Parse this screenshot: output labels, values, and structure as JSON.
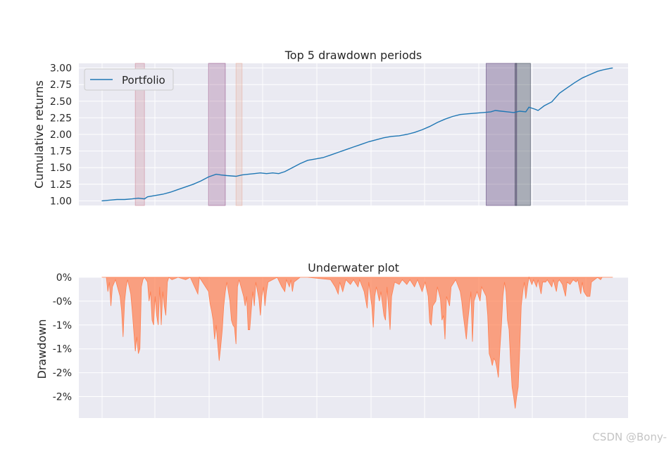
{
  "chart_data": [
    {
      "type": "line",
      "title": "Top 5 drawdown periods",
      "xlabel": "",
      "ylabel": "Cumulative returns",
      "ylim": [
        0.93,
        3.07
      ],
      "xlim": [
        -15,
        345
      ],
      "yticks": [
        1.0,
        1.25,
        1.5,
        1.75,
        2.0,
        2.25,
        2.5,
        2.75,
        3.0
      ],
      "ytick_labels": [
        "1.00",
        "1.25",
        "1.50",
        "1.75",
        "2.00",
        "2.25",
        "2.50",
        "2.75",
        "3.00"
      ],
      "grid": true,
      "legend": {
        "placement": "top-left",
        "entries": [
          "Portfolio"
        ]
      },
      "series": [
        {
          "name": "Portfolio",
          "color": "#1f77b4",
          "points": [
            [
              0,
              1.0
            ],
            [
              5,
              1.01
            ],
            [
              10,
              1.02
            ],
            [
              15,
              1.02
            ],
            [
              20,
              1.03
            ],
            [
              24,
              1.04
            ],
            [
              28,
              1.03
            ],
            [
              30,
              1.06
            ],
            [
              35,
              1.08
            ],
            [
              40,
              1.1
            ],
            [
              45,
              1.13
            ],
            [
              50,
              1.17
            ],
            [
              55,
              1.21
            ],
            [
              60,
              1.25
            ],
            [
              65,
              1.3
            ],
            [
              70,
              1.36
            ],
            [
              75,
              1.4
            ],
            [
              78,
              1.39
            ],
            [
              82,
              1.38
            ],
            [
              88,
              1.37
            ],
            [
              92,
              1.39
            ],
            [
              96,
              1.4
            ],
            [
              100,
              1.41
            ],
            [
              104,
              1.42
            ],
            [
              108,
              1.41
            ],
            [
              112,
              1.42
            ],
            [
              116,
              1.41
            ],
            [
              120,
              1.44
            ],
            [
              125,
              1.5
            ],
            [
              130,
              1.56
            ],
            [
              135,
              1.61
            ],
            [
              140,
              1.63
            ],
            [
              145,
              1.65
            ],
            [
              150,
              1.69
            ],
            [
              155,
              1.73
            ],
            [
              160,
              1.77
            ],
            [
              165,
              1.81
            ],
            [
              170,
              1.85
            ],
            [
              175,
              1.89
            ],
            [
              180,
              1.92
            ],
            [
              185,
              1.95
            ],
            [
              190,
              1.97
            ],
            [
              195,
              1.98
            ],
            [
              200,
              2.0
            ],
            [
              205,
              2.03
            ],
            [
              210,
              2.07
            ],
            [
              215,
              2.12
            ],
            [
              220,
              2.18
            ],
            [
              225,
              2.23
            ],
            [
              230,
              2.27
            ],
            [
              235,
              2.3
            ],
            [
              240,
              2.31
            ],
            [
              245,
              2.32
            ],
            [
              250,
              2.33
            ],
            [
              255,
              2.34
            ],
            [
              258,
              2.36
            ],
            [
              262,
              2.35
            ],
            [
              266,
              2.34
            ],
            [
              270,
              2.33
            ],
            [
              274,
              2.35
            ],
            [
              278,
              2.34
            ],
            [
              280,
              2.41
            ],
            [
              284,
              2.38
            ],
            [
              286,
              2.36
            ],
            [
              290,
              2.43
            ],
            [
              295,
              2.49
            ],
            [
              300,
              2.62
            ],
            [
              305,
              2.7
            ],
            [
              310,
              2.78
            ],
            [
              315,
              2.85
            ],
            [
              320,
              2.9
            ],
            [
              325,
              2.95
            ],
            [
              330,
              2.98
            ],
            [
              335,
              3.0
            ]
          ]
        }
      ],
      "drawdown_periods": [
        {
          "start": 22,
          "end": 28,
          "color": "#c97c8c",
          "opacity": 0.25
        },
        {
          "start": 70,
          "end": 81,
          "color": "#8a3f7c",
          "opacity": 0.25
        },
        {
          "start": 88,
          "end": 92,
          "color": "#e6aa98",
          "opacity": 0.25
        },
        {
          "start": 252,
          "end": 272,
          "color": "#4a2d6b",
          "opacity": 0.32
        },
        {
          "start": 271,
          "end": 281,
          "color": "#1e2a3a",
          "opacity": 0.32
        }
      ]
    },
    {
      "type": "area",
      "title": "Underwater plot",
      "xlabel": "",
      "ylabel": "Drawdown",
      "ylim": [
        -2.95,
        0.0
      ],
      "xlim": [
        -15,
        345
      ],
      "yticks": [
        0.0,
        -0.5,
        -1.0,
        -1.5,
        -2.0,
        -2.5
      ],
      "ytick_labels": [
        "0%",
        "-0%",
        "-1%",
        "-1%",
        "-2%",
        "-2%"
      ],
      "grid": true,
      "color": "#ff7f50",
      "opacity": 0.7,
      "drawdown_pct": [
        [
          0,
          0
        ],
        [
          3,
          0
        ],
        [
          4,
          -0.3
        ],
        [
          5,
          -0.1
        ],
        [
          6,
          -0.6
        ],
        [
          7,
          -0.2
        ],
        [
          9,
          -0.05
        ],
        [
          12,
          -0.4
        ],
        [
          13,
          -0.7
        ],
        [
          14,
          -1.25
        ],
        [
          15,
          -0.5
        ],
        [
          16,
          -0.2
        ],
        [
          17,
          -0.05
        ],
        [
          19,
          -0.35
        ],
        [
          20,
          -0.7
        ],
        [
          22,
          -1.55
        ],
        [
          23,
          -1.25
        ],
        [
          24,
          -1.6
        ],
        [
          25,
          -1.5
        ],
        [
          26,
          -0.2
        ],
        [
          27,
          -0.05
        ],
        [
          28,
          0
        ],
        [
          30,
          -0.1
        ],
        [
          31,
          -0.5
        ],
        [
          32,
          -0.3
        ],
        [
          33,
          -0.9
        ],
        [
          34,
          -1.0
        ],
        [
          35,
          -0.4
        ],
        [
          36,
          -0.8
        ],
        [
          37,
          -1.0
        ],
        [
          38,
          -0.2
        ],
        [
          39,
          -1.0
        ],
        [
          40,
          -0.3
        ],
        [
          41,
          -0.6
        ],
        [
          42,
          -0.8
        ],
        [
          43,
          -0.1
        ],
        [
          44,
          -0.0
        ],
        [
          46,
          -0.05
        ],
        [
          50,
          -0.0
        ],
        [
          55,
          -0.05
        ],
        [
          58,
          0
        ],
        [
          63,
          -0.35
        ],
        [
          64,
          0
        ],
        [
          70,
          -0.3
        ],
        [
          71,
          -0.55
        ],
        [
          72,
          -0.7
        ],
        [
          73,
          -0.9
        ],
        [
          74,
          -1.3
        ],
        [
          75,
          -1.0
        ],
        [
          76,
          -1.4
        ],
        [
          77,
          -1.75
        ],
        [
          78,
          -1.45
        ],
        [
          79,
          -1.1
        ],
        [
          80,
          -0.6
        ],
        [
          81,
          -0.3
        ],
        [
          82,
          -0.1
        ],
        [
          84,
          -0.5
        ],
        [
          85,
          -0.9
        ],
        [
          86,
          -1.0
        ],
        [
          87,
          -1.05
        ],
        [
          88,
          -1.4
        ],
        [
          89,
          -0.2
        ],
        [
          90,
          -0.05
        ],
        [
          93,
          -0.4
        ],
        [
          94,
          -0.6
        ],
        [
          95,
          -0.4
        ],
        [
          96,
          -1.1
        ],
        [
          97,
          -1.1
        ],
        [
          98,
          -0.7
        ],
        [
          99,
          -0.3
        ],
        [
          100,
          -0.6
        ],
        [
          101,
          -0.1
        ],
        [
          103,
          -0.45
        ],
        [
          104,
          -0.8
        ],
        [
          105,
          -0.4
        ],
        [
          106,
          -0.2
        ],
        [
          107,
          -0.6
        ],
        [
          108,
          -0.3
        ],
        [
          109,
          -0.1
        ],
        [
          112,
          -0.05
        ],
        [
          115,
          -0.0
        ],
        [
          118,
          -0.2
        ],
        [
          120,
          -0.3
        ],
        [
          121,
          -0.05
        ],
        [
          123,
          -0.2
        ],
        [
          124,
          -0.05
        ],
        [
          125,
          -0.3
        ],
        [
          126,
          -0.1
        ],
        [
          130,
          -0.0
        ],
        [
          135,
          0
        ],
        [
          150,
          -0.05
        ],
        [
          153,
          -0.2
        ],
        [
          155,
          -0.35
        ],
        [
          156,
          -0.1
        ],
        [
          158,
          -0.3
        ],
        [
          160,
          -0.05
        ],
        [
          163,
          -0.15
        ],
        [
          165,
          -0.05
        ],
        [
          168,
          -0.2
        ],
        [
          169,
          -0.05
        ],
        [
          172,
          -0.3
        ],
        [
          174,
          -0.65
        ],
        [
          175,
          -0.1
        ],
        [
          177,
          -0.6
        ],
        [
          178,
          -1.05
        ],
        [
          179,
          -0.4
        ],
        [
          180,
          -0.2
        ],
        [
          182,
          -0.5
        ],
        [
          183,
          -0.3
        ],
        [
          185,
          -0.8
        ],
        [
          186,
          -0.9
        ],
        [
          187,
          -0.2
        ],
        [
          189,
          -1.1
        ],
        [
          190,
          -0.4
        ],
        [
          192,
          -0.1
        ],
        [
          195,
          -0.15
        ],
        [
          197,
          -0.05
        ],
        [
          200,
          -0.15
        ],
        [
          202,
          -0.05
        ],
        [
          205,
          -0.2
        ],
        [
          207,
          -0.05
        ],
        [
          210,
          -0.3
        ],
        [
          212,
          -0.1
        ],
        [
          214,
          -0.4
        ],
        [
          215,
          -0.95
        ],
        [
          216,
          -1.0
        ],
        [
          217,
          -0.6
        ],
        [
          219,
          -0.5
        ],
        [
          220,
          -0.2
        ],
        [
          222,
          -0.45
        ],
        [
          223,
          -0.9
        ],
        [
          224,
          -0.8
        ],
        [
          225,
          -1.3
        ],
        [
          226,
          -0.4
        ],
        [
          228,
          -0.6
        ],
        [
          229,
          -0.2
        ],
        [
          232,
          -0.05
        ],
        [
          235,
          -0.3
        ],
        [
          236,
          -0.5
        ],
        [
          237,
          -0.8
        ],
        [
          238,
          -1.05
        ],
        [
          239,
          -1.3
        ],
        [
          240,
          -0.9
        ],
        [
          241,
          -0.6
        ],
        [
          242,
          -0.3
        ],
        [
          243,
          -1.35
        ],
        [
          244,
          -0.5
        ],
        [
          246,
          -0.3
        ],
        [
          248,
          -0.5
        ],
        [
          249,
          -0.2
        ],
        [
          252,
          -0.4
        ],
        [
          253,
          -0.8
        ],
        [
          254,
          -1.6
        ],
        [
          255,
          -1.7
        ],
        [
          256,
          -1.85
        ],
        [
          257,
          -1.7
        ],
        [
          258,
          -1.75
        ],
        [
          259,
          -1.9
        ],
        [
          260,
          -2.1
        ],
        [
          261,
          -1.5
        ],
        [
          262,
          -1.0
        ],
        [
          263,
          -0.4
        ],
        [
          264,
          -0.1
        ],
        [
          265,
          -0.3
        ],
        [
          266,
          -0.9
        ],
        [
          267,
          -1.1
        ],
        [
          268,
          -1.8
        ],
        [
          269,
          -2.3
        ],
        [
          270,
          -2.5
        ],
        [
          271,
          -2.75
        ],
        [
          272,
          -2.5
        ],
        [
          273,
          -2.3
        ],
        [
          274,
          -1.5
        ],
        [
          275,
          -0.6
        ],
        [
          276,
          -0.3
        ],
        [
          277,
          -0.1
        ],
        [
          278,
          -0.45
        ],
        [
          279,
          -0.2
        ],
        [
          280,
          -0.0
        ],
        [
          282,
          -0.15
        ],
        [
          283,
          -0.05
        ],
        [
          285,
          -0.2
        ],
        [
          286,
          -0.05
        ],
        [
          288,
          -0.35
        ],
        [
          289,
          -0.1
        ],
        [
          291,
          -0.1
        ],
        [
          292,
          -0.05
        ],
        [
          295,
          -0.2
        ],
        [
          296,
          -0.05
        ],
        [
          298,
          -0.3
        ],
        [
          299,
          -0.1
        ],
        [
          300,
          -0.05
        ],
        [
          302,
          -0.15
        ],
        [
          304,
          -0.4
        ],
        [
          305,
          -0.1
        ],
        [
          307,
          -0.15
        ],
        [
          309,
          -0.05
        ],
        [
          311,
          -0.1
        ],
        [
          312,
          -0.05
        ],
        [
          314,
          -0.35
        ],
        [
          315,
          -0.1
        ],
        [
          316,
          -0.3
        ],
        [
          318,
          -0.4
        ],
        [
          320,
          -0.4
        ],
        [
          321,
          -0.1
        ],
        [
          323,
          -0.05
        ],
        [
          325,
          -0.0
        ],
        [
          327,
          -0.05
        ],
        [
          328,
          0
        ],
        [
          335,
          0
        ]
      ]
    }
  ],
  "watermark": "CSDN @Bony-"
}
